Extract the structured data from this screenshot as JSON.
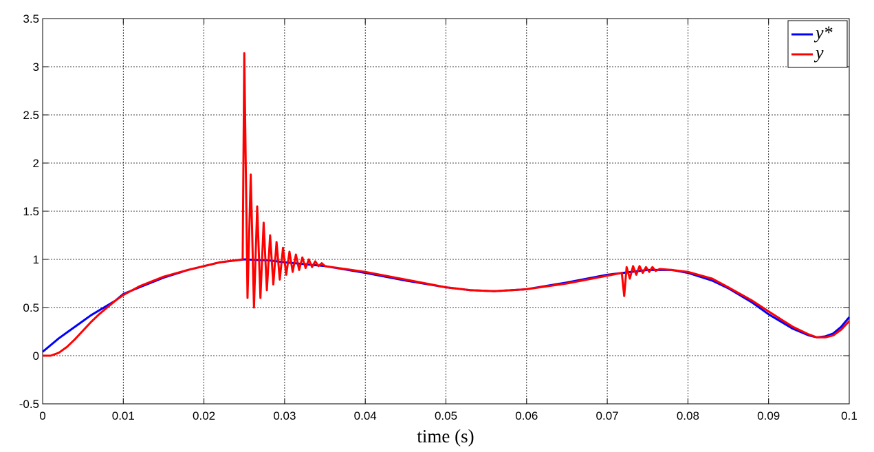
{
  "chart_data": {
    "type": "line",
    "xlabel": "time (s)",
    "xlim": [
      0,
      0.1
    ],
    "xticks": [
      0,
      0.01,
      0.02,
      0.03,
      0.04,
      0.05,
      0.06,
      0.07,
      0.08,
      0.09,
      0.1
    ],
    "ylim": [
      -0.5,
      3.5
    ],
    "yticks": [
      -0.5,
      0,
      0.5,
      1,
      1.5,
      2,
      2.5,
      3,
      3.5
    ],
    "grid": true,
    "legend": "upper right",
    "series": [
      {
        "name": "y*",
        "color": "#0000ff",
        "x": [
          0,
          0.001,
          0.002,
          0.003,
          0.004,
          0.005,
          0.006,
          0.007,
          0.008,
          0.009,
          0.01,
          0.012,
          0.015,
          0.018,
          0.02,
          0.022,
          0.025,
          0.028,
          0.03,
          0.035,
          0.04,
          0.045,
          0.05,
          0.053,
          0.056,
          0.06,
          0.065,
          0.07,
          0.075,
          0.078,
          0.08,
          0.083,
          0.085,
          0.088,
          0.09,
          0.093,
          0.095,
          0.096,
          0.097,
          0.098,
          0.099,
          0.1
        ],
        "values": [
          0.04,
          0.11,
          0.18,
          0.24,
          0.3,
          0.36,
          0.42,
          0.47,
          0.52,
          0.57,
          0.64,
          0.71,
          0.81,
          0.89,
          0.93,
          0.97,
          1.0,
          0.99,
          0.97,
          0.93,
          0.86,
          0.78,
          0.71,
          0.68,
          0.67,
          0.69,
          0.76,
          0.84,
          0.89,
          0.89,
          0.86,
          0.78,
          0.7,
          0.55,
          0.43,
          0.28,
          0.21,
          0.19,
          0.2,
          0.23,
          0.3,
          0.4
        ]
      },
      {
        "name": "y",
        "color": "#ff0000",
        "x": [
          0,
          0.001,
          0.002,
          0.003,
          0.004,
          0.005,
          0.006,
          0.007,
          0.008,
          0.009,
          0.01,
          0.012,
          0.015,
          0.018,
          0.02,
          0.022,
          0.0248,
          0.025,
          0.0254,
          0.0258,
          0.0262,
          0.0266,
          0.027,
          0.0274,
          0.0278,
          0.0282,
          0.0286,
          0.029,
          0.0294,
          0.0298,
          0.0302,
          0.0306,
          0.031,
          0.0314,
          0.0318,
          0.0322,
          0.0326,
          0.033,
          0.0334,
          0.0338,
          0.0342,
          0.0346,
          0.035,
          0.04,
          0.045,
          0.05,
          0.053,
          0.056,
          0.06,
          0.065,
          0.07,
          0.0718,
          0.0721,
          0.0724,
          0.0728,
          0.0732,
          0.0736,
          0.074,
          0.0744,
          0.0748,
          0.0752,
          0.0756,
          0.076,
          0.0765,
          0.078,
          0.08,
          0.083,
          0.085,
          0.088,
          0.09,
          0.093,
          0.095,
          0.096,
          0.097,
          0.098,
          0.099,
          0.1
        ],
        "values": [
          0.0,
          0.0,
          0.03,
          0.09,
          0.17,
          0.26,
          0.35,
          0.43,
          0.5,
          0.57,
          0.63,
          0.72,
          0.82,
          0.89,
          0.93,
          0.97,
          1.0,
          3.14,
          0.6,
          1.88,
          0.5,
          1.55,
          0.6,
          1.38,
          0.68,
          1.25,
          0.74,
          1.18,
          0.79,
          1.12,
          0.84,
          1.08,
          0.87,
          1.05,
          0.89,
          1.02,
          0.91,
          1.0,
          0.92,
          0.98,
          0.93,
          0.96,
          0.93,
          0.87,
          0.79,
          0.71,
          0.68,
          0.67,
          0.69,
          0.75,
          0.83,
          0.86,
          0.62,
          0.92,
          0.8,
          0.93,
          0.84,
          0.93,
          0.86,
          0.92,
          0.87,
          0.92,
          0.88,
          0.9,
          0.89,
          0.87,
          0.8,
          0.71,
          0.57,
          0.46,
          0.3,
          0.22,
          0.19,
          0.19,
          0.21,
          0.27,
          0.36
        ]
      }
    ]
  }
}
